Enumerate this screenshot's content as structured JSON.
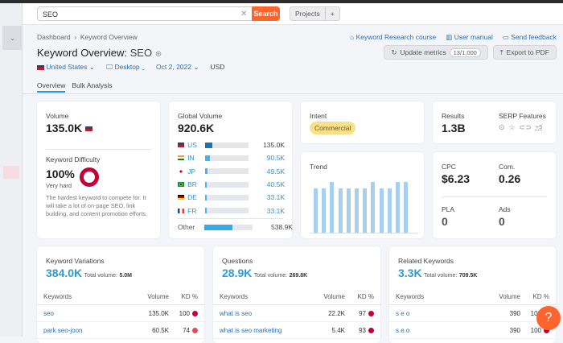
{
  "search": {
    "value": "SEO",
    "button": "Search",
    "projects": "Projects",
    "plus": "+"
  },
  "breadcrumb": [
    "Dashboard",
    "Keyword Overview"
  ],
  "links": [
    "Keyword Research course",
    "User manual",
    "Send feedback"
  ],
  "title": {
    "label": "Keyword Overview:",
    "keyword": "SEO"
  },
  "buttons": {
    "update": "Update metrics",
    "update_count": "13/1,000",
    "export": "Export to PDF"
  },
  "filters": {
    "country": "United States",
    "device": "Desktop",
    "date": "Oct 2, 2022",
    "currency": "USD"
  },
  "tabs": [
    "Overview",
    "Bulk Analysis"
  ],
  "volume": {
    "label": "Volume",
    "value": "135.0K"
  },
  "kd": {
    "label": "Keyword Difficulty",
    "value": "100%",
    "level": "Very hard",
    "percent": 100,
    "desc": "The hardest keyword to compete for. It will take a lot of on-page SEO, link building, and content promotion efforts."
  },
  "global": {
    "label": "Global Volume",
    "value": "920.6K",
    "rows": [
      {
        "code": "US",
        "value": "135.0K",
        "share": 0.15
      },
      {
        "code": "IN",
        "value": "90.5K",
        "share": 0.1
      },
      {
        "code": "JP",
        "value": "49.5K",
        "share": 0.05
      },
      {
        "code": "BR",
        "value": "40.5K",
        "share": 0.045
      },
      {
        "code": "DE",
        "value": "33.1K",
        "share": 0.036
      },
      {
        "code": "FR",
        "value": "33.1K",
        "share": 0.036
      }
    ],
    "other": {
      "label": "Other",
      "value": "538.9K",
      "share": 0.59
    }
  },
  "intent": {
    "label": "Intent",
    "value": "Commercial"
  },
  "results": {
    "label": "Results",
    "value": "1.3B",
    "serp_label": "SERP Features",
    "serp_more": "+5"
  },
  "trend": {
    "label": "Trend",
    "values": [
      0.88,
      0.88,
      1,
      0.88,
      0.88,
      0.88,
      0.88,
      1,
      0.88,
      0.88,
      1,
      1
    ]
  },
  "cpc": {
    "label": "CPC",
    "value": "$6.23"
  },
  "com": {
    "label": "Com.",
    "value": "0.26"
  },
  "pla": {
    "label": "PLA",
    "value": "0"
  },
  "ads": {
    "label": "Ads",
    "value": "0"
  },
  "panels": [
    {
      "title": "Keyword Variations",
      "count": "384.0K",
      "total_label": "Total volume:",
      "total": "5.0M",
      "cols": [
        "Keywords",
        "Volume",
        "KD %"
      ],
      "rows": [
        {
          "k": "seo",
          "v": "135.0K",
          "kd": "100"
        },
        {
          "k": "park seo-joon",
          "v": "60.5K",
          "kd": "74"
        }
      ]
    },
    {
      "title": "Questions",
      "count": "28.9K",
      "total_label": "Total volume:",
      "total": "269.8K",
      "cols": [
        "Keywords",
        "Volume",
        "KD %"
      ],
      "rows": [
        {
          "k": "what is seo",
          "v": "22.2K",
          "kd": "97"
        },
        {
          "k": "what is seo marketing",
          "v": "5.4K",
          "kd": "93"
        }
      ]
    },
    {
      "title": "Related Keywords",
      "count": "3.3K",
      "total_label": "Total volume:",
      "total": "709.5K",
      "cols": [
        "Keywords",
        "Volume",
        "KD %"
      ],
      "rows": [
        {
          "k": "s e o",
          "v": "390",
          "kd": "100"
        },
        {
          "k": "s.e.o",
          "v": "390",
          "kd": "100"
        }
      ]
    }
  ],
  "help": "?",
  "colors": {
    "accent": "#ff642d",
    "link": "#2b6fb5",
    "kd_red": "#c4003a",
    "bar": "#4cb0ea"
  }
}
